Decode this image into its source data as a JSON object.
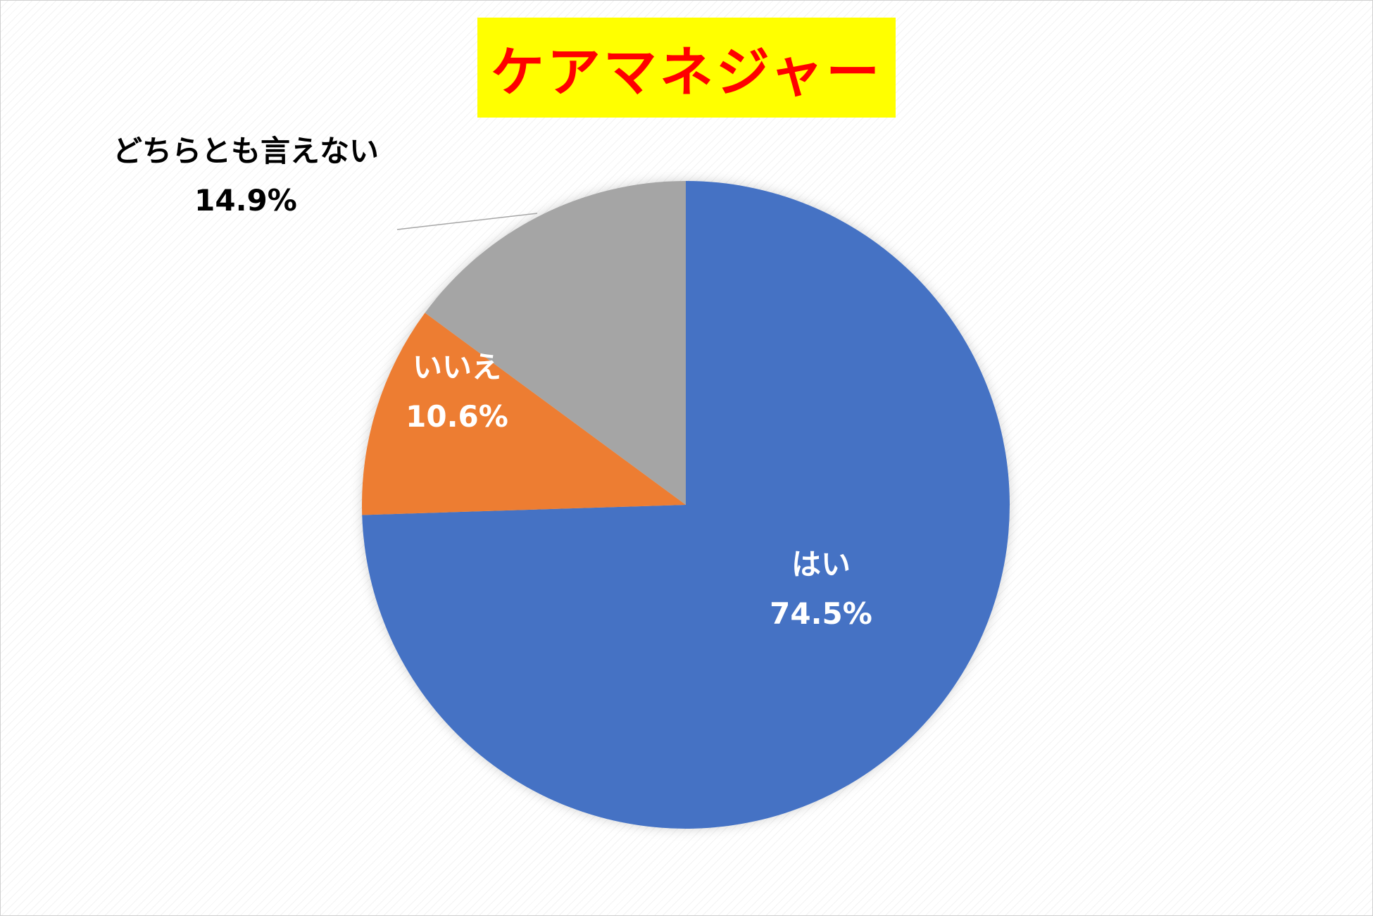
{
  "chart_data": {
    "type": "pie",
    "title": "ケアマネジャー",
    "slices": [
      {
        "label": "はい",
        "value": 74.5,
        "value_label": "74.5%",
        "color": "#4472C4"
      },
      {
        "label": "いいえ",
        "value": 10.6,
        "value_label": "10.6%",
        "color": "#ED7D31"
      },
      {
        "label": "どちらとも言えない",
        "value": 14.9,
        "value_label": "14.9%",
        "color": "#A5A5A5"
      }
    ],
    "start_angle": "12 o'clock, clockwise",
    "legend": "none",
    "title_color": "#FF0000",
    "title_background": "#FFFF00"
  }
}
